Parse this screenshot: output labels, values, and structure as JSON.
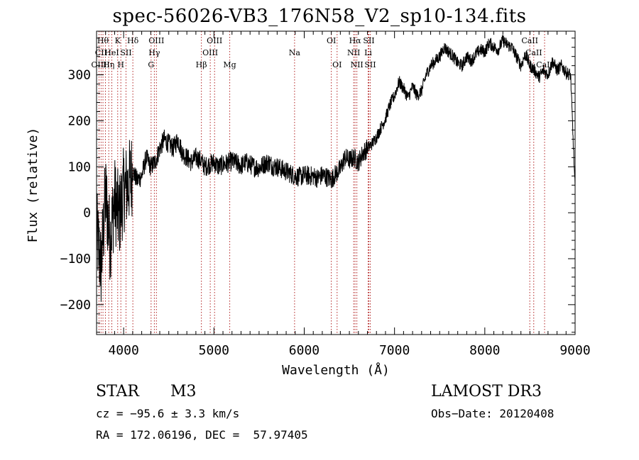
{
  "chart_data": {
    "type": "line",
    "title": "spec-56026-VB3_176N58_V2_sp10-134.fits",
    "xlabel": "Wavelength (Å)",
    "ylabel": "Flux (relative)",
    "xlim": [
      3700,
      9000
    ],
    "ylim": [
      -265,
      395
    ],
    "xticks": [
      4000,
      5000,
      6000,
      7000,
      8000,
      9000
    ],
    "yticks": [
      -200,
      -100,
      0,
      100,
      200,
      300
    ],
    "grid": false,
    "series": [
      {
        "name": "spectrum",
        "x": [
          3700,
          3750,
          3800,
          3850,
          3900,
          3950,
          4000,
          4050,
          4100,
          4150,
          4200,
          4250,
          4300,
          4350,
          4400,
          4450,
          4500,
          4550,
          4600,
          4650,
          4700,
          4750,
          4800,
          4850,
          4900,
          4950,
          5000,
          5050,
          5100,
          5150,
          5200,
          5250,
          5300,
          5350,
          5400,
          5450,
          5500,
          5550,
          5600,
          5650,
          5700,
          5750,
          5800,
          5850,
          5900,
          5950,
          6000,
          6050,
          6100,
          6150,
          6200,
          6250,
          6300,
          6350,
          6400,
          6450,
          6500,
          6550,
          6600,
          6650,
          6700,
          6750,
          6800,
          6850,
          6900,
          6950,
          7000,
          7050,
          7100,
          7150,
          7200,
          7250,
          7300,
          7350,
          7400,
          7450,
          7500,
          7550,
          7600,
          7650,
          7700,
          7750,
          7800,
          7850,
          7900,
          7950,
          8000,
          8050,
          8100,
          8150,
          8200,
          8250,
          8300,
          8350,
          8400,
          8450,
          8500,
          8550,
          8600,
          8650,
          8700,
          8750,
          8800,
          8850,
          8900,
          8950,
          9000
        ],
        "y": [
          -40,
          -120,
          40,
          -60,
          30,
          -10,
          50,
          60,
          90,
          70,
          80,
          120,
          100,
          110,
          140,
          160,
          150,
          140,
          160,
          130,
          120,
          110,
          120,
          115,
          100,
          105,
          110,
          100,
          105,
          108,
          112,
          108,
          102,
          110,
          105,
          100,
          98,
          105,
          110,
          102,
          100,
          95,
          90,
          85,
          80,
          78,
          82,
          80,
          80,
          75,
          82,
          78,
          72,
          85,
          95,
          120,
          115,
          120,
          110,
          130,
          140,
          150,
          165,
          185,
          205,
          235,
          255,
          285,
          270,
          250,
          275,
          255,
          265,
          300,
          320,
          330,
          340,
          360,
          350,
          340,
          325,
          320,
          340,
          330,
          345,
          355,
          350,
          370,
          360,
          355,
          375,
          365,
          360,
          340,
          320,
          345,
          320,
          310,
          295,
          310,
          300,
          330,
          310,
          320,
          305,
          300,
          50
        ]
      }
    ],
    "lines": [
      {
        "w": 3727,
        "labels": [
          "OIII"
        ],
        "row": 3
      },
      {
        "w": 3750,
        "labels": [
          "CII"
        ],
        "row": 2
      },
      {
        "w": 3771,
        "labels": [
          "Hθ"
        ],
        "row": 1
      },
      {
        "w": 3798,
        "labels": [],
        "row": 0
      },
      {
        "w": 3835,
        "labels": [
          "Hη"
        ],
        "row": 3
      },
      {
        "w": 3869,
        "labels": [
          "HeI"
        ],
        "row": 2
      },
      {
        "w": 3934,
        "labels": [
          "K"
        ],
        "row": 1
      },
      {
        "w": 3969,
        "labels": [
          "H"
        ],
        "row": 3
      },
      {
        "w": 4026,
        "labels": [
          "SII"
        ],
        "row": 2
      },
      {
        "w": 4102,
        "labels": [
          "Hδ"
        ],
        "row": 1
      },
      {
        "w": 4304,
        "labels": [
          "G"
        ],
        "row": 3
      },
      {
        "w": 4340,
        "labels": [
          "Hγ"
        ],
        "row": 2
      },
      {
        "w": 4363,
        "labels": [
          "OIII"
        ],
        "row": 1
      },
      {
        "w": 4861,
        "labels": [
          "Hβ"
        ],
        "row": 3
      },
      {
        "w": 4959,
        "labels": [
          "OIII"
        ],
        "row": 2
      },
      {
        "w": 5007,
        "labels": [
          "OIII"
        ],
        "row": 1
      },
      {
        "w": 5175,
        "labels": [
          "Mg"
        ],
        "row": 3
      },
      {
        "w": 5893,
        "labels": [
          "Na"
        ],
        "row": 2
      },
      {
        "w": 6300,
        "labels": [
          "OI"
        ],
        "row": 1
      },
      {
        "w": 6364,
        "labels": [
          "OI"
        ],
        "row": 3
      },
      {
        "w": 6548,
        "labels": [
          "NII"
        ],
        "row": 2
      },
      {
        "w": 6563,
        "labels": [
          "Hα"
        ],
        "row": 1
      },
      {
        "w": 6583,
        "labels": [
          "NII"
        ],
        "row": 3
      },
      {
        "w": 6708,
        "labels": [
          "Li"
        ],
        "row": 2
      },
      {
        "w": 6716,
        "labels": [
          "SII"
        ],
        "row": 1
      },
      {
        "w": 6731,
        "labels": [
          "SII"
        ],
        "row": 3
      },
      {
        "w": 8498,
        "labels": [
          "CaII"
        ],
        "row": 1
      },
      {
        "w": 8542,
        "labels": [
          "CaII"
        ],
        "row": 2
      },
      {
        "w": 8662,
        "labels": [
          "CaII"
        ],
        "row": 3
      }
    ]
  },
  "info": {
    "class": "STAR",
    "subclass": "M3",
    "survey": "LAMOST DR3",
    "cz": "cz = −95.6 ± 3.3 km/s",
    "obs_date": "Obs−Date: 20120408",
    "radec": "RA = 172.06196, DEC =  57.97405"
  },
  "colors": {
    "line_marker": "#b22222",
    "spectrum": "#000000",
    "axis": "#000000"
  }
}
